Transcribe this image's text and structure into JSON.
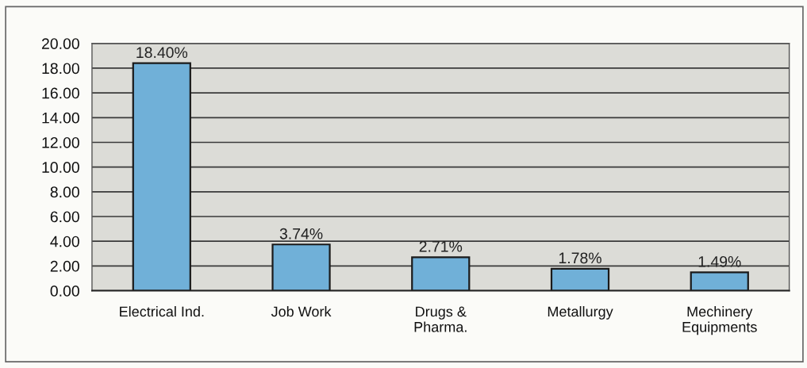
{
  "chart_data": {
    "type": "bar",
    "categories": [
      "Electrical Ind.",
      "Job Work",
      "Drugs &\nPharma.",
      "Metallurgy",
      "Mechinery\nEquipments"
    ],
    "values": [
      18.4,
      3.74,
      2.71,
      1.78,
      1.49
    ],
    "value_labels": [
      "18.40%",
      "3.74%",
      "2.71%",
      "1.78%",
      "1.49%"
    ],
    "color": "#70b0d8",
    "ylim": [
      0,
      20
    ],
    "yticks": [
      {
        "value": 0,
        "label": "0.00"
      },
      {
        "value": 2,
        "label": "2.00"
      },
      {
        "value": 4,
        "label": "4.00"
      },
      {
        "value": 6,
        "label": "6.00"
      },
      {
        "value": 8,
        "label": "8.00"
      },
      {
        "value": 10,
        "label": "10.00"
      },
      {
        "value": 12,
        "label": "12.00"
      },
      {
        "value": 14,
        "label": "14.00"
      },
      {
        "value": 16,
        "label": "16.00"
      },
      {
        "value": 18,
        "label": "18.00"
      },
      {
        "value": 20,
        "label": "20.00"
      }
    ],
    "grid": "y"
  }
}
